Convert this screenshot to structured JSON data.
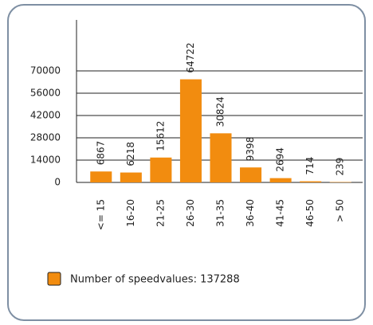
{
  "chart_data": {
    "type": "bar",
    "categories": [
      "<= 15",
      "16-20",
      "21-25",
      "26-30",
      "31-35",
      "36-40",
      "41-45",
      "46-50",
      "> 50"
    ],
    "series": [
      {
        "name": "Number of speedvalues: 137288",
        "color": "#f28c0f",
        "values": [
          6867,
          6218,
          15612,
          64722,
          30824,
          9398,
          2694,
          714,
          239
        ]
      }
    ],
    "ylim": [
      0,
      100000
    ],
    "yticks": [
      0,
      14000,
      28000,
      42000,
      56000,
      70000
    ],
    "grid": true,
    "legend": "bottom"
  }
}
